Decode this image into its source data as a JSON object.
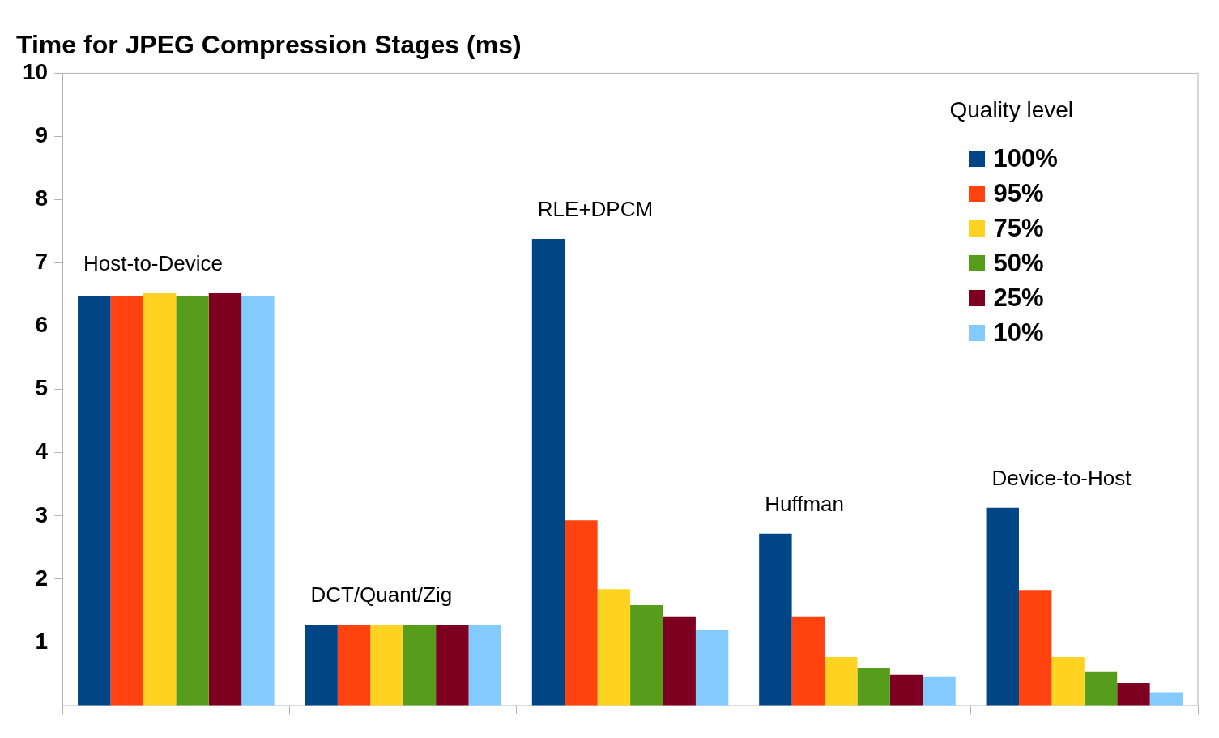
{
  "chart_data": {
    "type": "bar",
    "title": "Time for JPEG Compression Stages (ms)",
    "legend_title": "Quality level",
    "legend": "top right",
    "tick_labels": "y",
    "grid": false,
    "categories": [
      "Host-to-Device",
      "DCT/Quant/Zig",
      "RLE+DPCM",
      "Huffman",
      "Device-to-Host"
    ],
    "ylim": [
      0,
      10
    ],
    "yticks": [
      {
        "value": 0,
        "label": null
      },
      1,
      2,
      3,
      4,
      5,
      6,
      7,
      8,
      9,
      10
    ],
    "series": [
      {
        "name": "100%",
        "color": "#004586",
        "values": [
          6.47,
          1.28,
          7.38,
          2.72,
          3.13
        ]
      },
      {
        "name": "95%",
        "color": "#ff420e",
        "values": [
          6.47,
          1.27,
          2.93,
          1.4,
          1.83
        ]
      },
      {
        "name": "75%",
        "color": "#ffd320",
        "values": [
          6.52,
          1.27,
          1.84,
          0.77,
          0.77
        ]
      },
      {
        "name": "50%",
        "color": "#579d1c",
        "values": [
          6.48,
          1.27,
          1.59,
          0.6,
          0.54
        ]
      },
      {
        "name": "25%",
        "color": "#7e0021",
        "values": [
          6.52,
          1.27,
          1.4,
          0.49,
          0.36
        ]
      },
      {
        "name": "10%",
        "color": "#83caff",
        "values": [
          6.48,
          1.27,
          1.19,
          0.45,
          0.21
        ]
      }
    ]
  }
}
